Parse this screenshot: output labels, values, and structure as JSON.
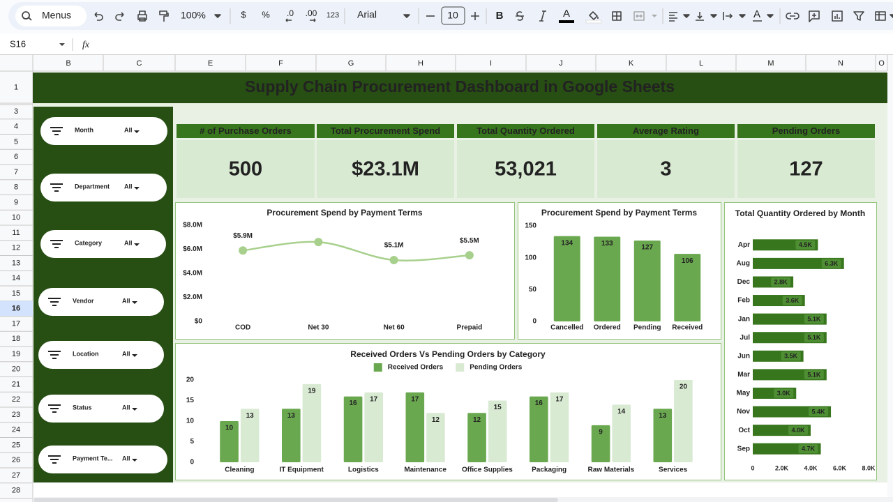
{
  "toolbar": {
    "search": "Menus",
    "zoom": "100%",
    "currency": "$",
    "percent": "%",
    "decimal_decrease": ".0",
    "decimal_increase": ".00",
    "number_format": "123",
    "font": "Arial",
    "font_size": "10",
    "bold": "B",
    "text_color": "A",
    "text_style": "A"
  },
  "formula_bar": {
    "cell": "S16",
    "function_icon": "fx"
  },
  "columns": [
    "B",
    "C",
    "E",
    "F",
    "G",
    "H",
    "I",
    "J",
    "K",
    "L",
    "M",
    "N",
    "O"
  ],
  "rows": [
    1,
    3,
    4,
    5,
    6,
    7,
    8,
    9,
    10,
    11,
    12,
    13,
    14,
    15,
    16,
    17,
    18,
    19,
    20,
    21,
    22,
    23,
    24,
    25,
    26,
    27,
    28
  ],
  "dashboard": {
    "title": "Supply Chain Procurement Dashboard in Google Sheets",
    "filters": [
      {
        "label": "Month",
        "value": "All"
      },
      {
        "label": "Department",
        "value": "All"
      },
      {
        "label": "Category",
        "value": "All"
      },
      {
        "label": "Vendor",
        "value": "All"
      },
      {
        "label": "Location",
        "value": "All"
      },
      {
        "label": "Status",
        "value": "All"
      },
      {
        "label": "Payment Te...",
        "value": "All"
      }
    ],
    "kpis": [
      {
        "label": "# of Purchase Orders",
        "value": "500"
      },
      {
        "label": "Total Procurement Spend",
        "value": "$23.1M"
      },
      {
        "label": "Total Quantity Ordered",
        "value": "53,021"
      },
      {
        "label": "Average Rating",
        "value": "3"
      },
      {
        "label": "Pending Orders",
        "value": "127"
      }
    ]
  },
  "chart_data": [
    {
      "type": "line",
      "title": "Procurement Spend by Payment Terms",
      "categories": [
        "COD",
        "Net 30",
        "Net 60",
        "Prepaid"
      ],
      "values": [
        5900000,
        6600000,
        5100000,
        5500000
      ],
      "value_labels": [
        "$5.9M",
        null,
        "$5.1M",
        "$5.5M"
      ],
      "color": "#a8d08d",
      "smooth": true,
      "ylim": [
        0,
        8000000
      ],
      "yticks": [
        {
          "value": 0,
          "label": "$0"
        },
        {
          "value": 2000000,
          "label": "$2.0M"
        },
        {
          "value": 4000000,
          "label": "$4.0M"
        },
        {
          "value": 6000000,
          "label": "$6.0M"
        },
        {
          "value": 8000000,
          "label": "$8.0M"
        }
      ]
    },
    {
      "type": "bar",
      "title": "Procurement Spend by Payment Terms",
      "categories": [
        "Cancelled",
        "Ordered",
        "Pending",
        "Received"
      ],
      "values": [
        134,
        133,
        127,
        106
      ],
      "color": "#6aa84f",
      "ylim": [
        0,
        150
      ],
      "yticks": [
        0,
        50,
        100,
        150
      ]
    },
    {
      "type": "bar",
      "title": "Received Orders Vs Pending Orders by Category",
      "categories": [
        "Cleaning",
        "IT Equipment",
        "Logistics",
        "Maintenance",
        "Office Supplies",
        "Packaging",
        "Raw Materials",
        "Services"
      ],
      "series": [
        {
          "name": "Received Orders",
          "color": "#6aa84f",
          "values": [
            10,
            13,
            16,
            17,
            12,
            16,
            9,
            13
          ]
        },
        {
          "name": "Pending Orders",
          "color": "#d9ead3",
          "values": [
            13,
            19,
            17,
            12,
            15,
            17,
            14,
            20
          ]
        }
      ],
      "legend": "top",
      "ylim": [
        0,
        20
      ],
      "yticks": [
        0,
        5,
        10,
        15,
        20
      ]
    },
    {
      "type": "hbar",
      "title": "Total Quantity Ordered by Month",
      "categories": [
        "Apr",
        "Aug",
        "Dec",
        "Feb",
        "Jan",
        "Jul",
        "Jun",
        "Mar",
        "May",
        "Nov",
        "Oct",
        "Sep"
      ],
      "values": [
        4500,
        6300,
        2800,
        3600,
        5100,
        5100,
        3500,
        5100,
        3000,
        5400,
        4000,
        4700
      ],
      "value_labels": [
        "4.5K",
        "6.3K",
        "2.8K",
        "3.6K",
        "5.1K",
        "5.1K",
        "3.5K",
        "5.1K",
        "3.0K",
        "5.4K",
        "4.0K",
        "4.7K"
      ],
      "color": "#38761d",
      "xlim": [
        0,
        8000
      ],
      "xticks": [
        0,
        {
          "value": 2000,
          "label": "2.0K"
        },
        {
          "value": 4000,
          "label": "4.0K"
        },
        {
          "value": 6000,
          "label": "6.0K"
        },
        {
          "value": 8000,
          "label": "8.0K"
        }
      ]
    }
  ]
}
